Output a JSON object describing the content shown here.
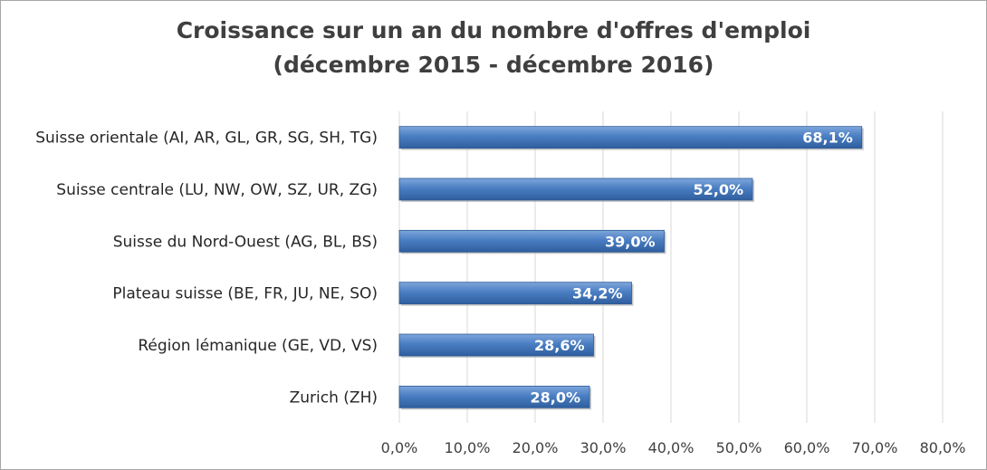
{
  "chart_data": {
    "type": "bar",
    "orientation": "horizontal",
    "title_line1": "Croissance sur un an du nombre d'offres d'emploi",
    "title_line2": "(décembre 2015 - décembre 2016)",
    "categories": [
      "Suisse orientale (AI, AR, GL, GR, SG, SH, TG)",
      "Suisse centrale (LU, NW, OW, SZ, UR, ZG)",
      "Suisse du Nord-Ouest (AG, BL, BS)",
      "Plateau suisse (BE, FR, JU, NE, SO)",
      "Région lémanique (GE, VD, VS)",
      "Zurich (ZH)"
    ],
    "values": [
      68.1,
      52.0,
      39.0,
      34.2,
      28.6,
      28.0
    ],
    "data_labels": [
      "68,1%",
      "52,0%",
      "39,0%",
      "34,2%",
      "28,6%",
      "28,0%"
    ],
    "xlim": [
      0,
      80
    ],
    "xticks": [
      "0,0%",
      "10,0%",
      "20,0%",
      "30,0%",
      "40,0%",
      "50,0%",
      "60,0%",
      "70,0%",
      "80,0%"
    ],
    "grid": true,
    "legend": "none",
    "bar_color": "#4a7ec2"
  }
}
